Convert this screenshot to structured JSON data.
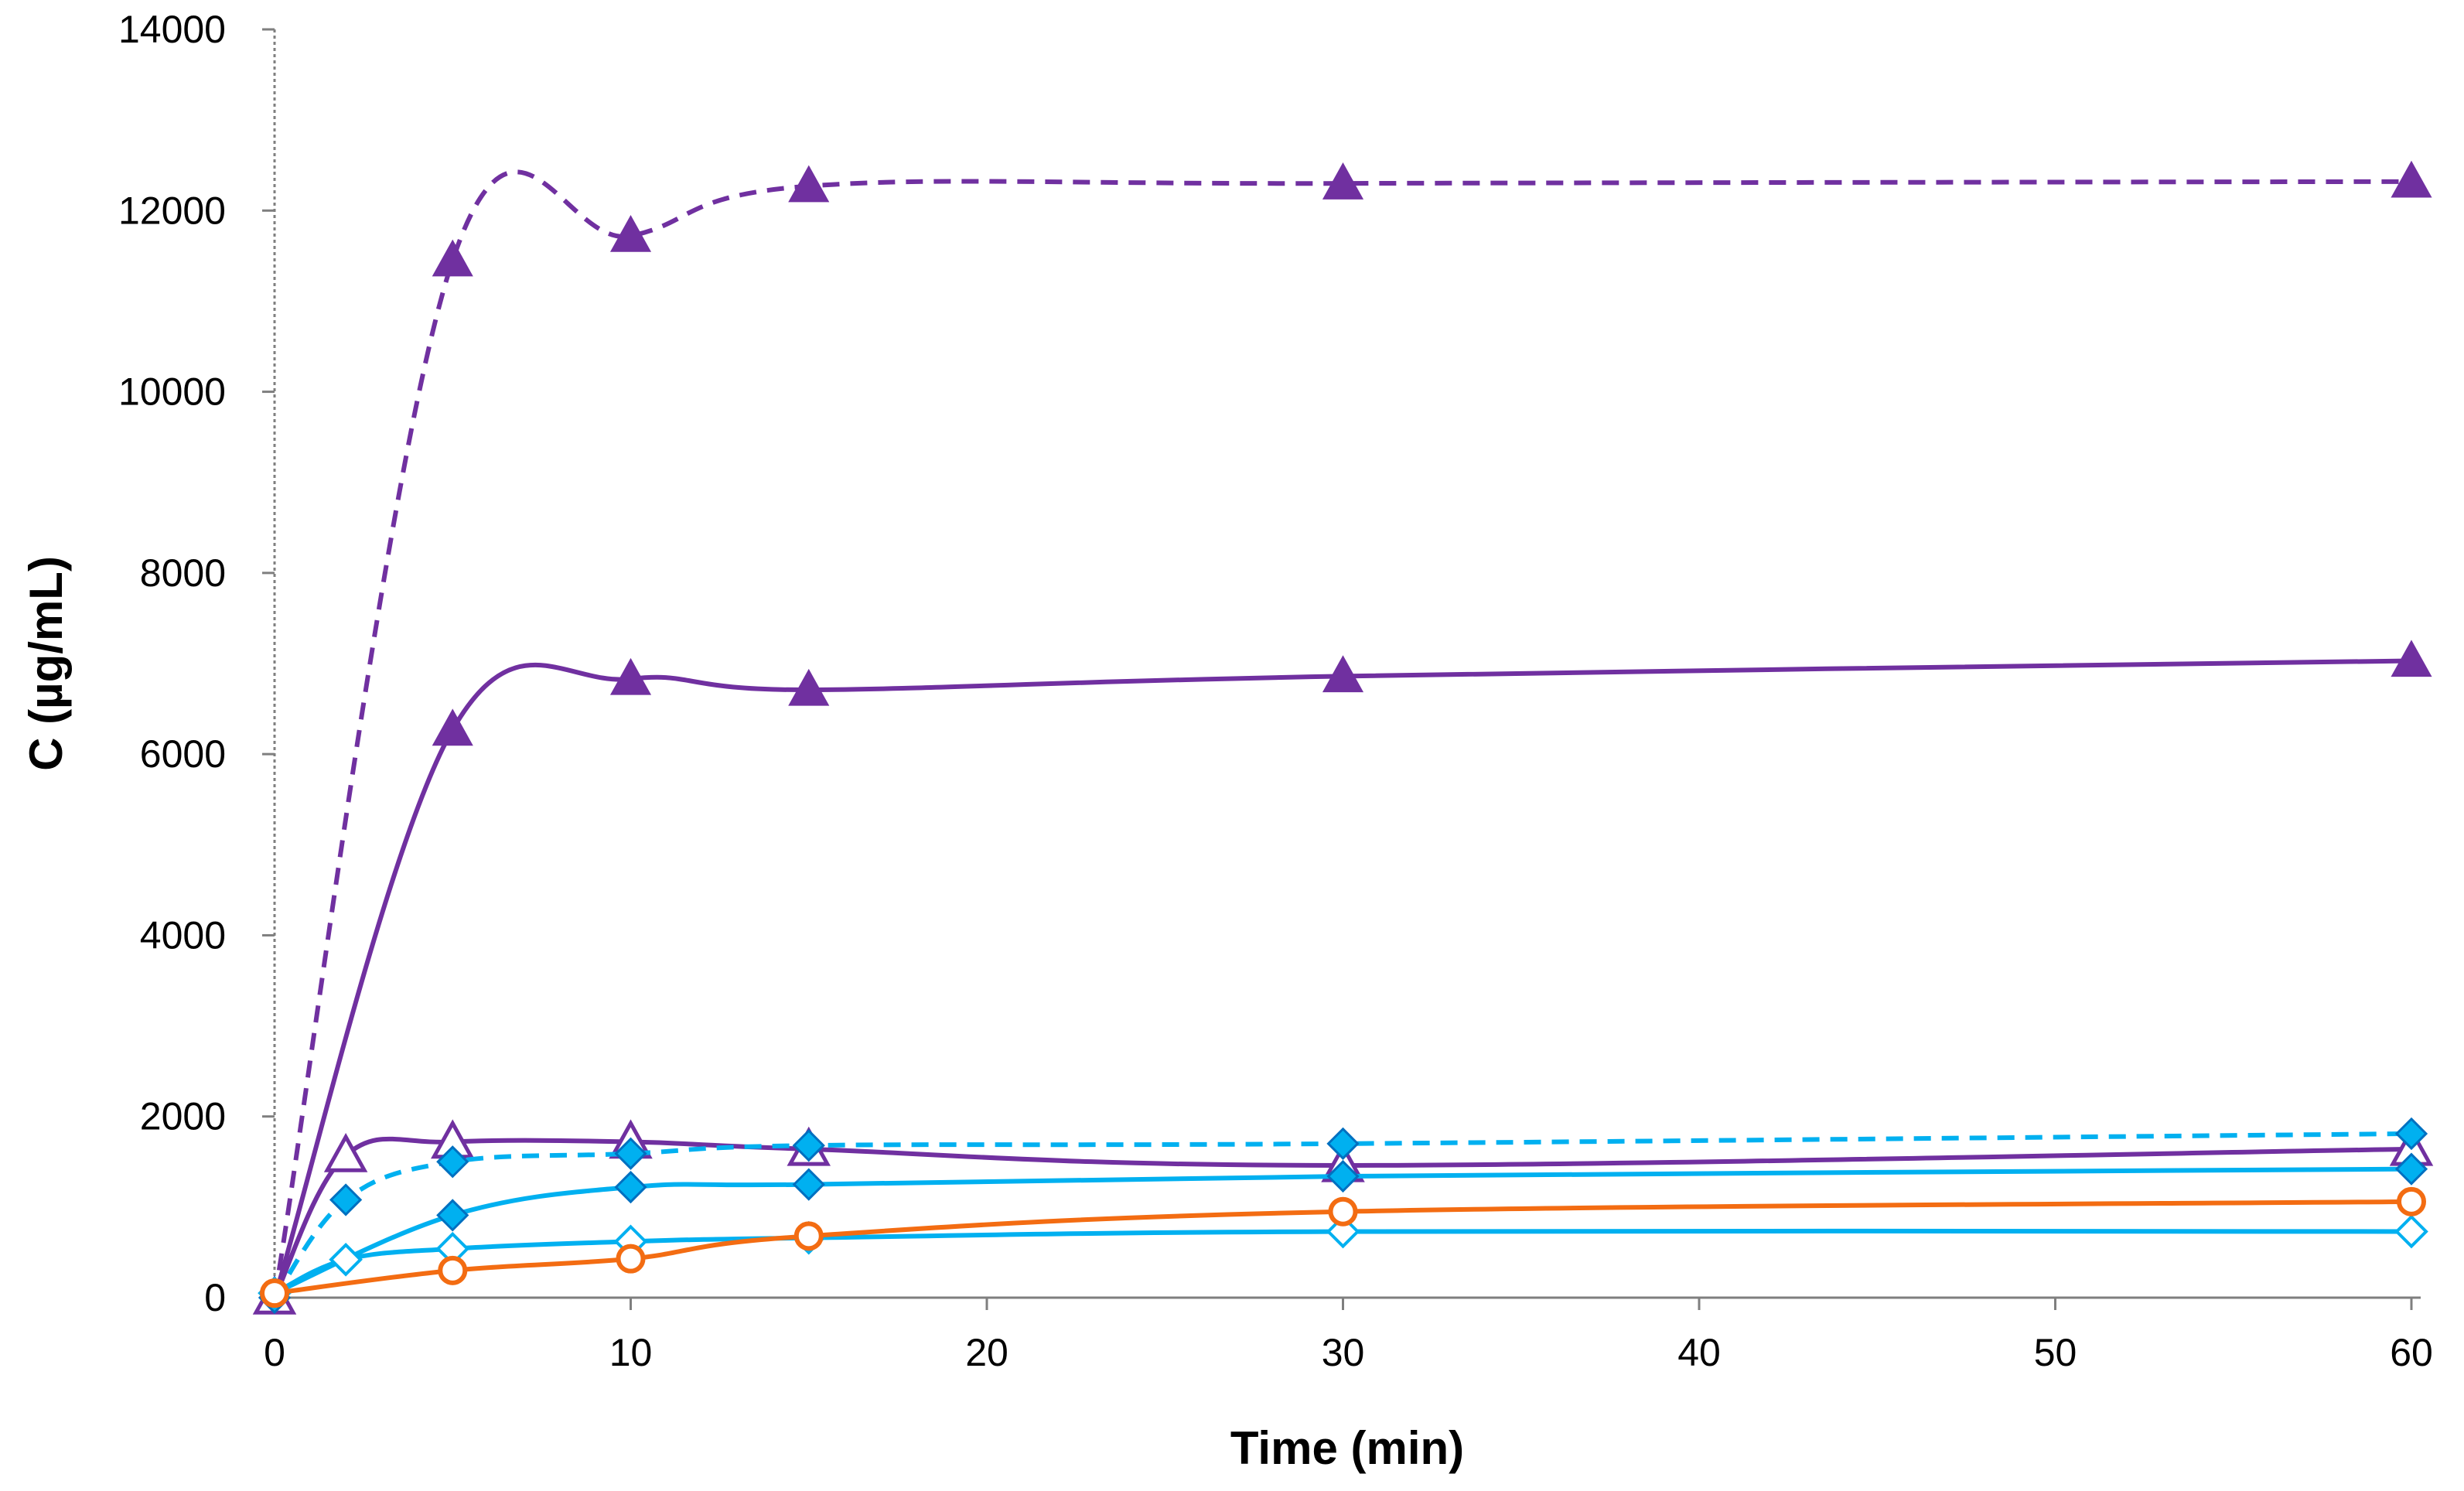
{
  "chart_data": {
    "type": "line",
    "title": "",
    "xlabel": "Time (min)",
    "ylabel": "C (µg/mL)",
    "xlim": [
      0,
      60
    ],
    "ylim": [
      0,
      14000
    ],
    "xticks": [
      0,
      10,
      20,
      30,
      40,
      50,
      60
    ],
    "yticks": [
      0,
      2000,
      4000,
      6000,
      8000,
      10000,
      12000,
      14000
    ],
    "grid": false,
    "legend": "none",
    "series": [
      {
        "color": "#7030A0",
        "line": "dashed",
        "marker": "triangle-filled",
        "points": [
          [
            0,
            0
          ],
          [
            5,
            11450
          ],
          [
            10,
            11720
          ],
          [
            15,
            12270
          ],
          [
            30,
            12300
          ],
          [
            60,
            12320
          ]
        ]
      },
      {
        "color": "#7030A0",
        "line": "solid",
        "marker": "triangle-filled",
        "points": [
          [
            0,
            0
          ],
          [
            5,
            6270
          ],
          [
            10,
            6830
          ],
          [
            15,
            6710
          ],
          [
            30,
            6860
          ],
          [
            60,
            7030
          ]
        ]
      },
      {
        "color": "#7030A0",
        "line": "solid",
        "marker": "triangle-open",
        "points": [
          [
            0,
            0
          ],
          [
            2,
            1570
          ],
          [
            5,
            1720
          ],
          [
            10,
            1720
          ],
          [
            15,
            1640
          ],
          [
            30,
            1460
          ],
          [
            60,
            1640
          ]
        ]
      },
      {
        "color": "#00B0F0",
        "line": "dashed",
        "marker": "diamond-filled",
        "points": [
          [
            0,
            0
          ],
          [
            2,
            1080
          ],
          [
            5,
            1500
          ],
          [
            10,
            1590
          ],
          [
            15,
            1680
          ],
          [
            30,
            1700
          ],
          [
            60,
            1810
          ]
        ]
      },
      {
        "color": "#00B0F0",
        "line": "solid",
        "marker": "diamond-filled",
        "points": [
          [
            0,
            50
          ],
          [
            5,
            910
          ],
          [
            10,
            1220
          ],
          [
            15,
            1250
          ],
          [
            30,
            1340
          ],
          [
            60,
            1420
          ]
        ]
      },
      {
        "color": "#00B0F0",
        "line": "solid",
        "marker": "diamond-open",
        "points": [
          [
            0,
            50
          ],
          [
            2,
            420
          ],
          [
            5,
            540
          ],
          [
            10,
            620
          ],
          [
            15,
            660
          ],
          [
            30,
            730
          ],
          [
            60,
            730
          ]
        ]
      },
      {
        "color": "#F36C12",
        "line": "solid",
        "marker": "circle-open",
        "points": [
          [
            0,
            50
          ],
          [
            5,
            300
          ],
          [
            10,
            430
          ],
          [
            15,
            680
          ],
          [
            30,
            950
          ],
          [
            60,
            1060
          ]
        ]
      }
    ]
  }
}
